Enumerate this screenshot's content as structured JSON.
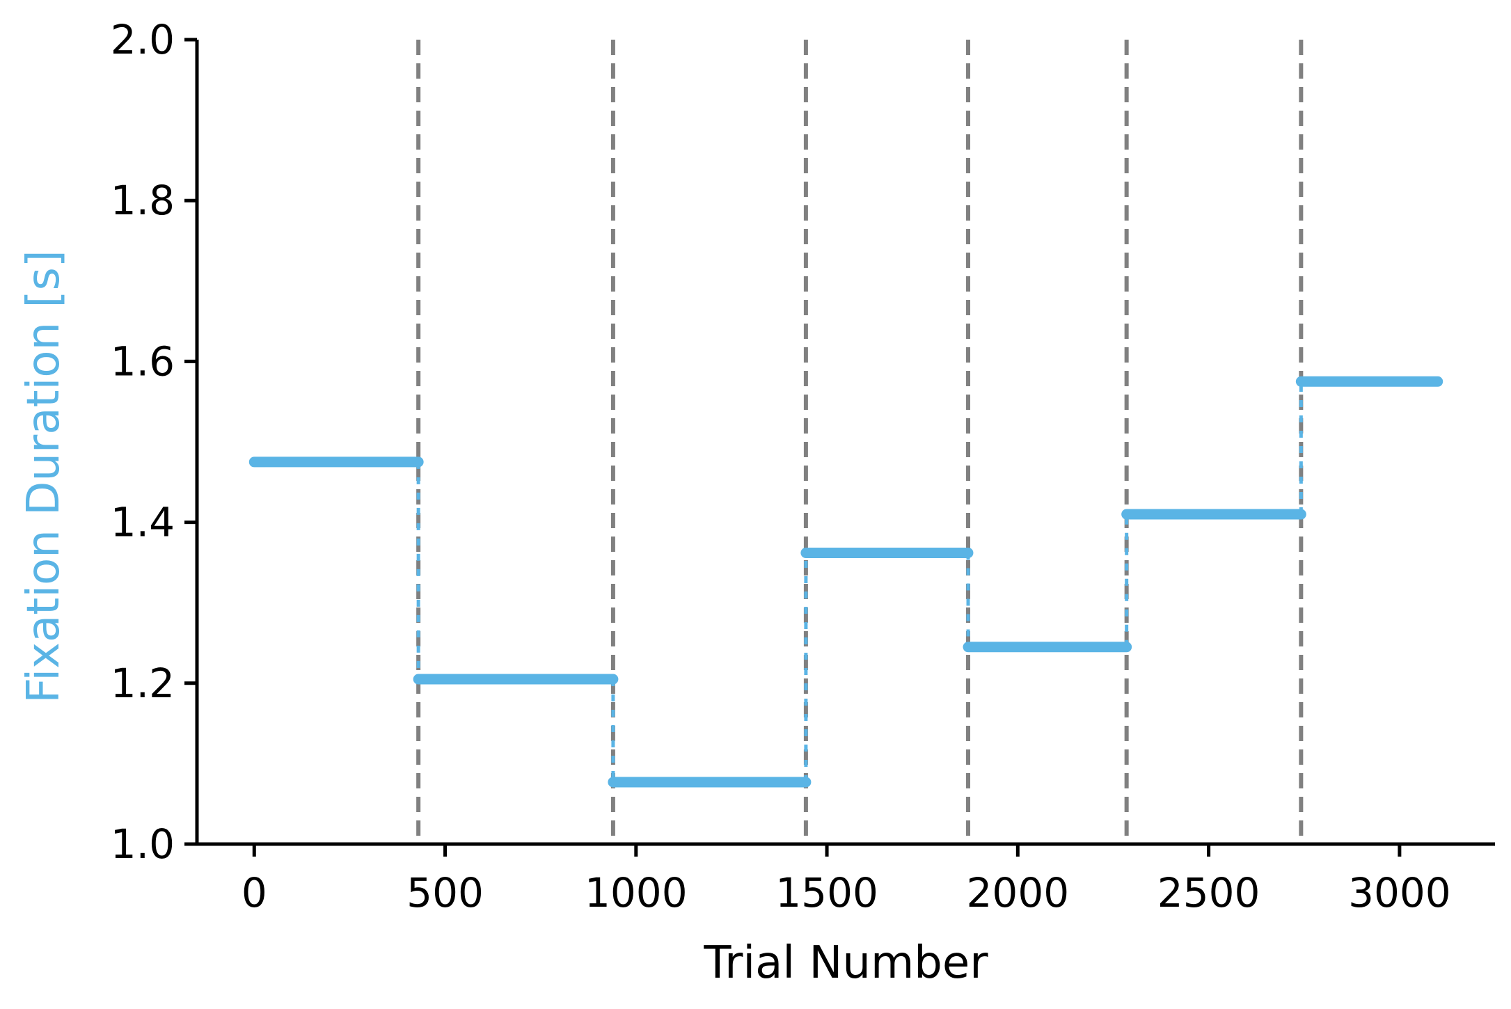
{
  "chart_data": {
    "type": "line",
    "title": "",
    "xlabel": "Trial Number",
    "ylabel": "Fixation Duration [s]",
    "xlim": [
      -150,
      3250
    ],
    "ylim": [
      1.0,
      2.0
    ],
    "x_ticks": [
      0,
      500,
      1000,
      1500,
      2000,
      2500,
      3000
    ],
    "y_ticks": [
      1.0,
      1.2,
      1.4,
      1.6,
      1.8,
      2.0
    ],
    "y_tick_labels": [
      "1.0",
      "1.2",
      "1.4",
      "1.6",
      "1.8",
      "2.0"
    ],
    "grid": false,
    "series": [
      {
        "color": "#5ab4e5",
        "style": "step",
        "segments": [
          {
            "x_start": 0,
            "x_end": 430,
            "y": 1.475
          },
          {
            "x_start": 430,
            "x_end": 940,
            "y": 1.205
          },
          {
            "x_start": 940,
            "x_end": 1445,
            "y": 1.077
          },
          {
            "x_start": 1445,
            "x_end": 1870,
            "y": 1.362
          },
          {
            "x_start": 1870,
            "x_end": 2285,
            "y": 1.245
          },
          {
            "x_start": 2285,
            "x_end": 2742,
            "y": 1.41
          },
          {
            "x_start": 2742,
            "x_end": 3100,
            "y": 1.575
          }
        ]
      }
    ],
    "vlines": {
      "color": "#808080",
      "style": "dashed",
      "x": [
        430,
        940,
        1445,
        1870,
        2285,
        2742
      ]
    },
    "ylabel_color": "#5ab4e5",
    "axis_color": "#000000"
  }
}
